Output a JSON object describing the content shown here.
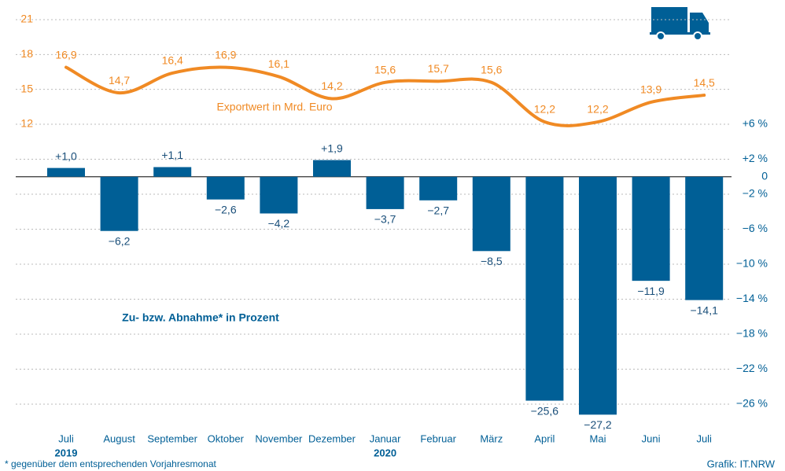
{
  "chart_data": {
    "type": "combo",
    "categories": [
      "Juli",
      "August",
      "September",
      "Oktober",
      "November",
      "Dezember",
      "Januar",
      "Februar",
      "März",
      "April",
      "Mai",
      "Juni",
      "Juli"
    ],
    "year_labels": [
      "2019",
      null,
      null,
      null,
      null,
      null,
      "2020",
      null,
      null,
      null,
      null,
      null,
      null
    ],
    "series": [
      {
        "name": "Exportwert in Mrd. Euro",
        "type": "line",
        "axis": "y",
        "color": "#f08a24",
        "values": [
          16.9,
          14.7,
          16.4,
          16.9,
          16.1,
          14.2,
          15.6,
          15.7,
          15.6,
          12.2,
          12.2,
          13.9,
          14.5
        ],
        "value_labels": [
          "16,9",
          "14,7",
          "16,4",
          "16,9",
          "16,1",
          "14,2",
          "15,6",
          "15,7",
          "15,6",
          "12,2",
          "12,2",
          "13,9",
          "14,5"
        ]
      },
      {
        "name": "Zu- bzw. Abnahme* in Prozent",
        "type": "bar",
        "axis": "y2",
        "color": "#005f96",
        "values": [
          1.0,
          -6.2,
          1.1,
          -2.6,
          -4.2,
          1.9,
          -3.7,
          -2.7,
          -8.5,
          -25.6,
          -27.2,
          -11.9,
          -14.1
        ],
        "value_labels": [
          "+1,0",
          "−6,2",
          "+1,1",
          "−2,6",
          "−4,2",
          "+1,9",
          "−3,7",
          "−2,7",
          "−8,5",
          "−25,6",
          "−27,2",
          "−11,9",
          "−14,1"
        ]
      }
    ],
    "ylim": [
      12,
      21
    ],
    "yticks": [
      12,
      15,
      18,
      21
    ],
    "y2lim": [
      -26,
      6
    ],
    "y2ticks": [
      {
        "value": 6,
        "label": "+6 %"
      },
      {
        "value": 2,
        "label": "+2 %"
      },
      0,
      {
        "value": -2,
        "label": "−2 %"
      },
      {
        "value": -6,
        "label": "−6 %"
      },
      {
        "value": -10,
        "label": "−10 %"
      },
      {
        "value": -14,
        "label": "−14 %"
      },
      {
        "value": -18,
        "label": "−18 %"
      },
      {
        "value": -22,
        "label": "−22 %"
      },
      {
        "value": -26,
        "label": "−26 %"
      }
    ],
    "grid": true,
    "footnote": "* gegenüber dem entsprechenden Vorjahresmonat",
    "source": "Grafik: IT.NRW"
  }
}
